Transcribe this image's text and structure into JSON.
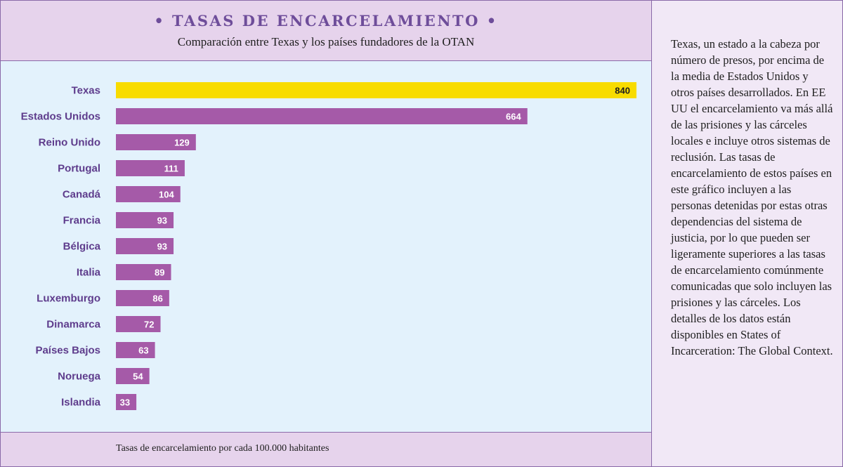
{
  "header": {
    "title": "• TASAS DE ENCARCELAMIENTO •",
    "subtitle": "Comparación entre Texas y los países fundadores de la OTAN"
  },
  "footer": {
    "note": "Tasas de encarcelamiento por cada 100.000 habitantes"
  },
  "sidebar": {
    "text": "Texas, un estado a la cabeza por número de presos, por encima de la media de Estados Unidos y otros países desarrollados. En EE UU el encarcelamiento va más allá de las prisiones y las cárceles locales e incluye otros sistemas de reclusión. Las tasas de encarcelamiento de estos países en este gráfico incluyen a las personas detenidas por estas otras dependencias del sistema de justicia, por lo que pueden ser ligeramente superiores a las tasas de encarcelamiento comúnmente comunicadas que solo incluyen las prisiones y las cárceles. Los detalles de los datos están disponibles en States of Incarceration: The Global Context."
  },
  "chart_data": {
    "type": "bar",
    "orientation": "horizontal",
    "title": "• TASAS DE ENCARCELAMIENTO •",
    "subtitle": "Comparación entre Texas y los países fundadores de la OTAN",
    "categories": [
      "Texas",
      "Estados Unidos",
      "Reino Unido",
      "Portugal",
      "Canadá",
      "Francia",
      "Bélgica",
      "Italia",
      "Luxemburgo",
      "Dinamarca",
      "Países Bajos",
      "Noruega",
      "Islandia"
    ],
    "values": [
      840,
      664,
      129,
      111,
      104,
      93,
      93,
      89,
      86,
      72,
      63,
      54,
      33
    ],
    "highlight": "Texas",
    "colors": {
      "highlight": "#f8dc00",
      "bar": "#a55aa8",
      "category_label": "#5e3c8c",
      "value_label_dark": "#1e1e1e",
      "value_label_light": "#ffffff"
    },
    "xlim": [
      0,
      840
    ],
    "grid": false
  }
}
